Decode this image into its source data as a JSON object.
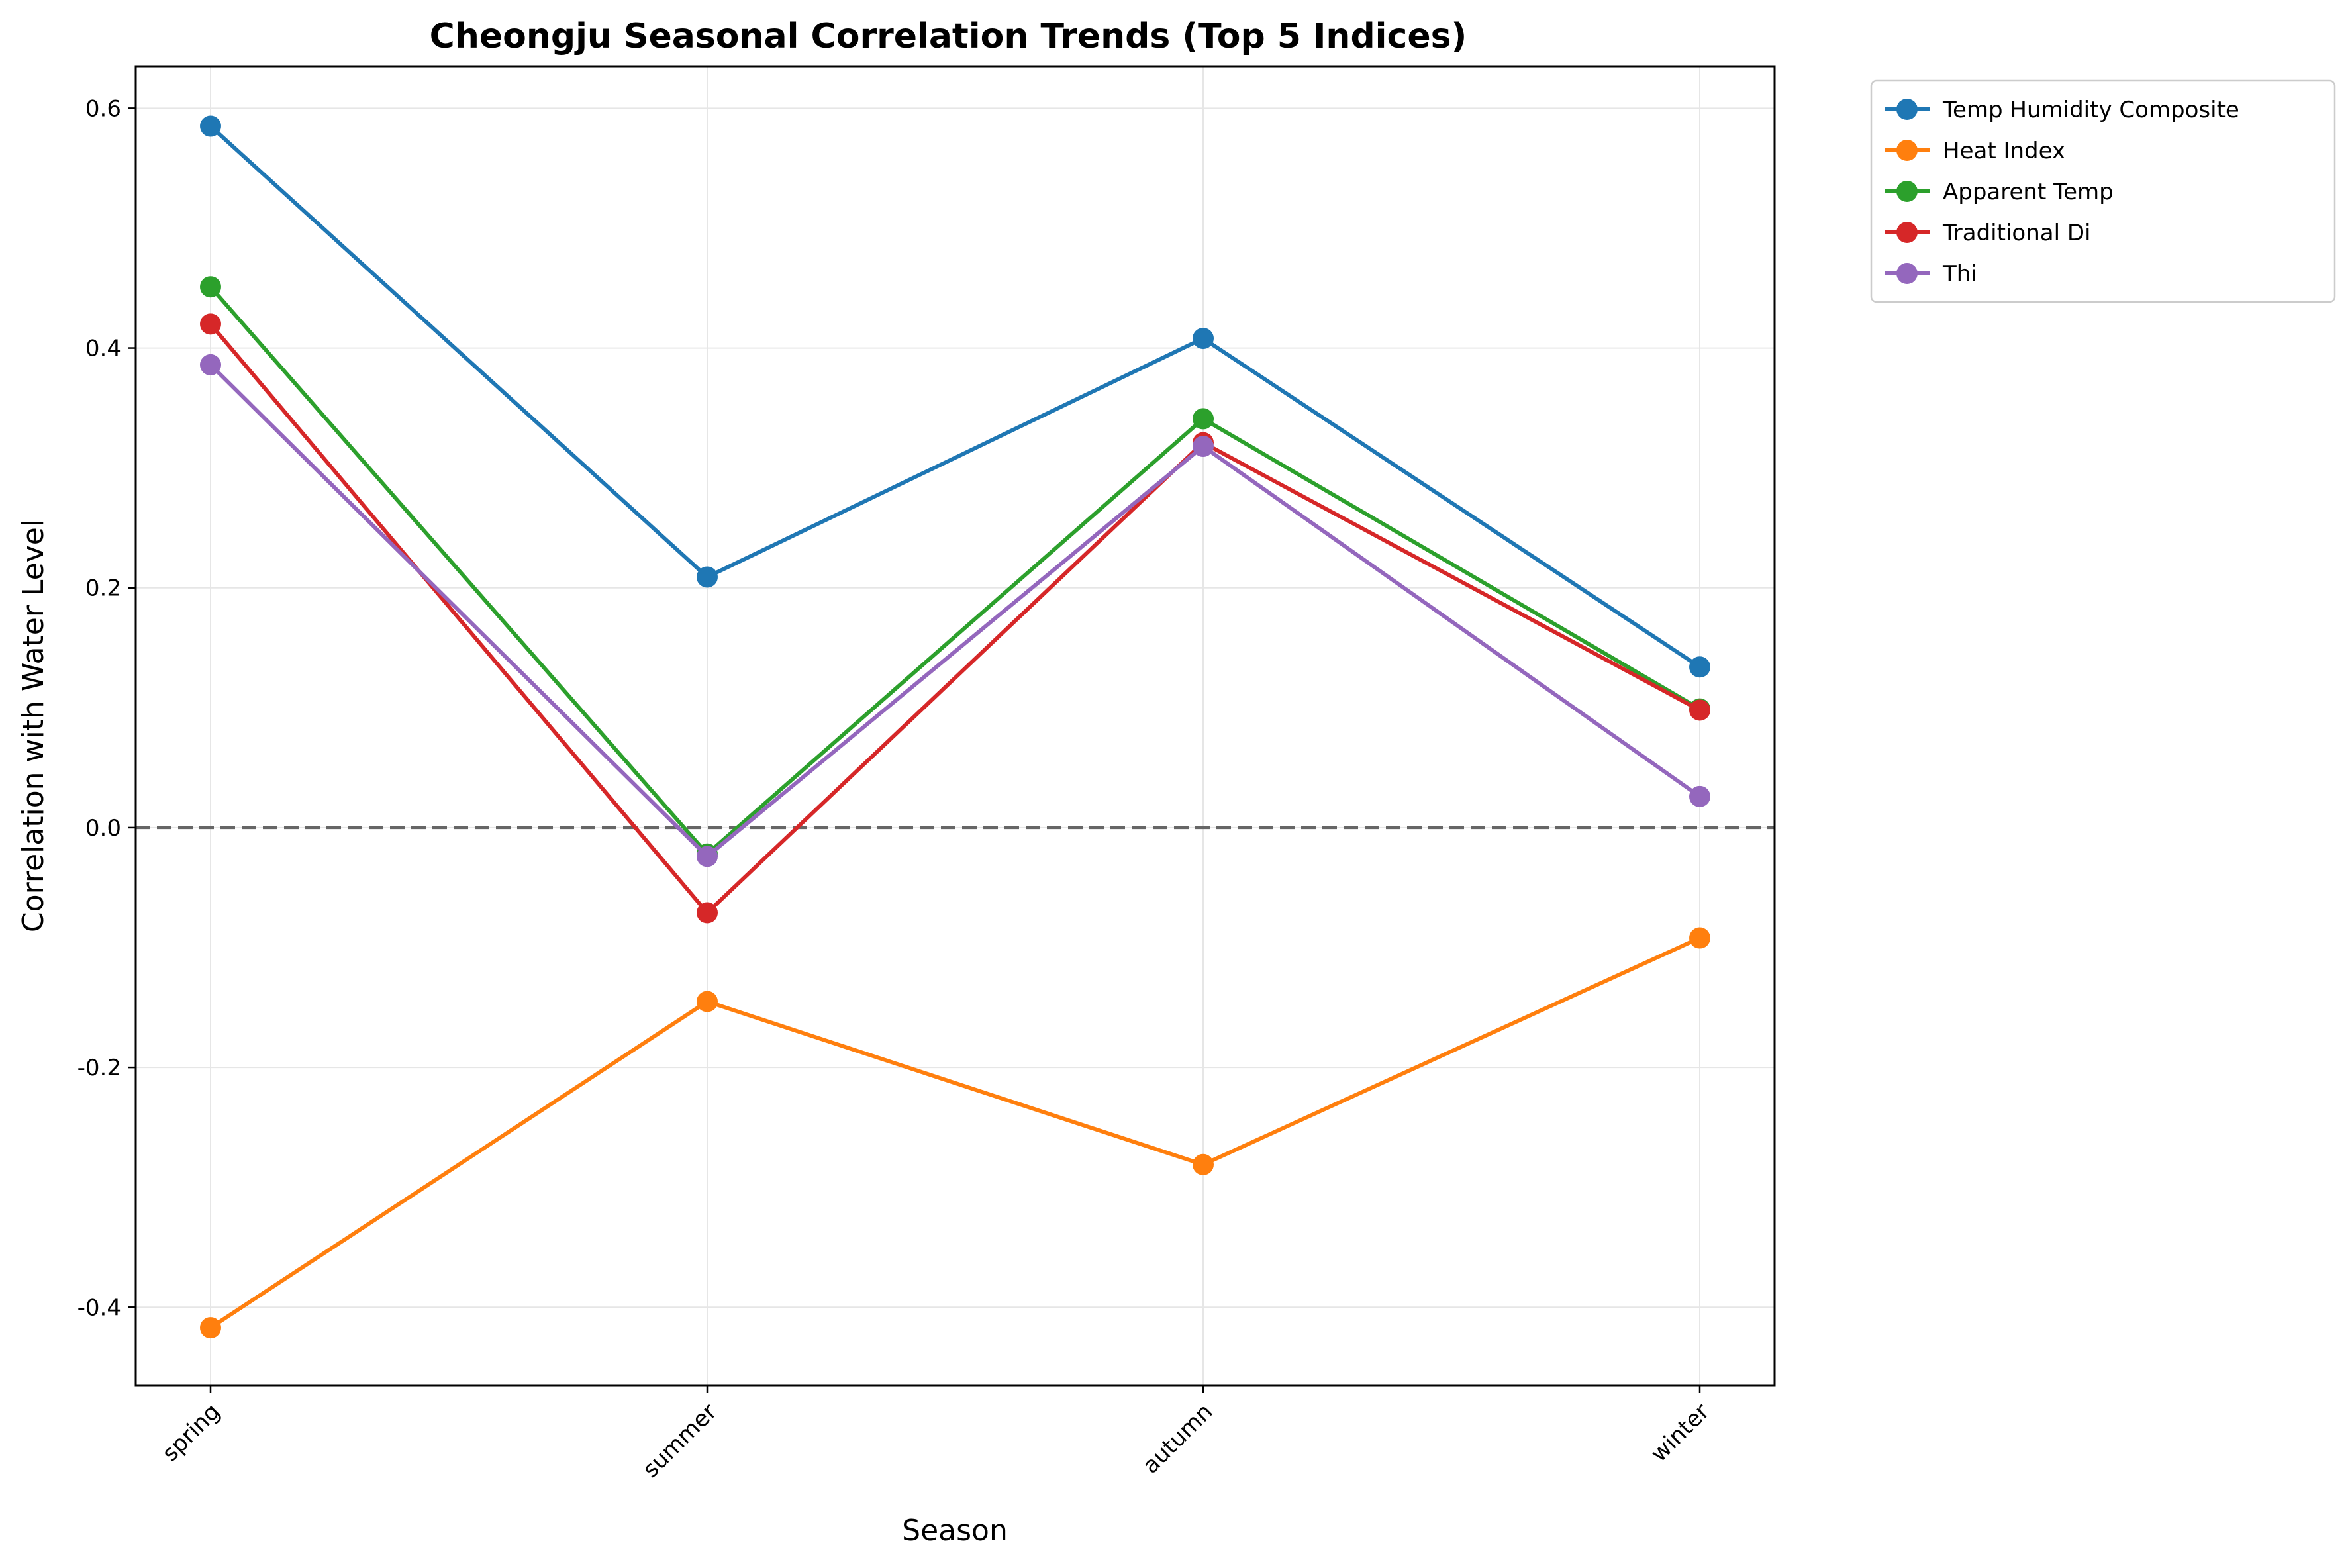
{
  "chart_data": {
    "type": "line",
    "title": "Cheongju Seasonal Correlation Trends (Top 5 Indices)",
    "xlabel": "Season",
    "ylabel": "Correlation with Water Level",
    "categories": [
      "spring",
      "summer",
      "autumn",
      "winter"
    ],
    "ylim": [
      -0.465,
      0.635
    ],
    "yticks": [
      -0.4,
      -0.2,
      0.0,
      0.2,
      0.4,
      0.6
    ],
    "ytick_labels": [
      "-0.4",
      "-0.2",
      "0.0",
      "0.2",
      "0.4",
      "0.6"
    ],
    "grid": true,
    "legend_position": "outside-top-right",
    "reference_line": {
      "y": 0.0,
      "style": "dashed",
      "color": "#666666"
    },
    "series": [
      {
        "name": "Temp Humidity Composite",
        "color": "#1f77b4",
        "values": [
          0.585,
          0.209,
          0.408,
          0.134
        ]
      },
      {
        "name": "Heat Index",
        "color": "#ff7f0e",
        "values": [
          -0.417,
          -0.145,
          -0.281,
          -0.092
        ]
      },
      {
        "name": "Apparent Temp",
        "color": "#2ca02c",
        "values": [
          0.451,
          -0.022,
          0.341,
          0.099
        ]
      },
      {
        "name": "Traditional Di",
        "color": "#d62728",
        "values": [
          0.42,
          -0.071,
          0.321,
          0.098
        ]
      },
      {
        "name": "Thi",
        "color": "#9467bd",
        "values": [
          0.386,
          -0.024,
          0.318,
          0.026
        ]
      }
    ]
  }
}
